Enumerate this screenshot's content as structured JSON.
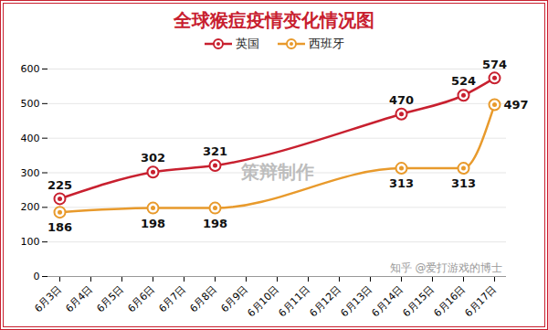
{
  "chart_data": {
    "type": "line",
    "title": "全球猴痘疫情变化情况图",
    "x": [
      "6月3日",
      "6月6日",
      "6月8日",
      "6月14日",
      "6月16日",
      "6月17日"
    ],
    "xticks": [
      "6月3日",
      "6月4日",
      "6月5日",
      "6月6日",
      "6月7日",
      "6月8日",
      "6月9日",
      "6月10日",
      "6月11日",
      "6月12日",
      "6月13日",
      "6月14日",
      "6月15日",
      "6月16日",
      "6月17日"
    ],
    "series": [
      {
        "name": "英国",
        "color": "#c8202f",
        "marker": "circle",
        "values": [
          225,
          302,
          321,
          470,
          524,
          574
        ]
      },
      {
        "name": "西班牙",
        "color": "#e89a2c",
        "marker": "circle",
        "values": [
          186,
          198,
          198,
          313,
          313,
          497
        ]
      }
    ],
    "ylim": [
      0,
      600
    ],
    "yticks": [
      0,
      100,
      200,
      300,
      400,
      500,
      600
    ],
    "grid": true,
    "data_labels": true,
    "legend": "top",
    "annotations": [
      "策辩制作",
      "知乎 @爱打游戏的博士"
    ]
  }
}
